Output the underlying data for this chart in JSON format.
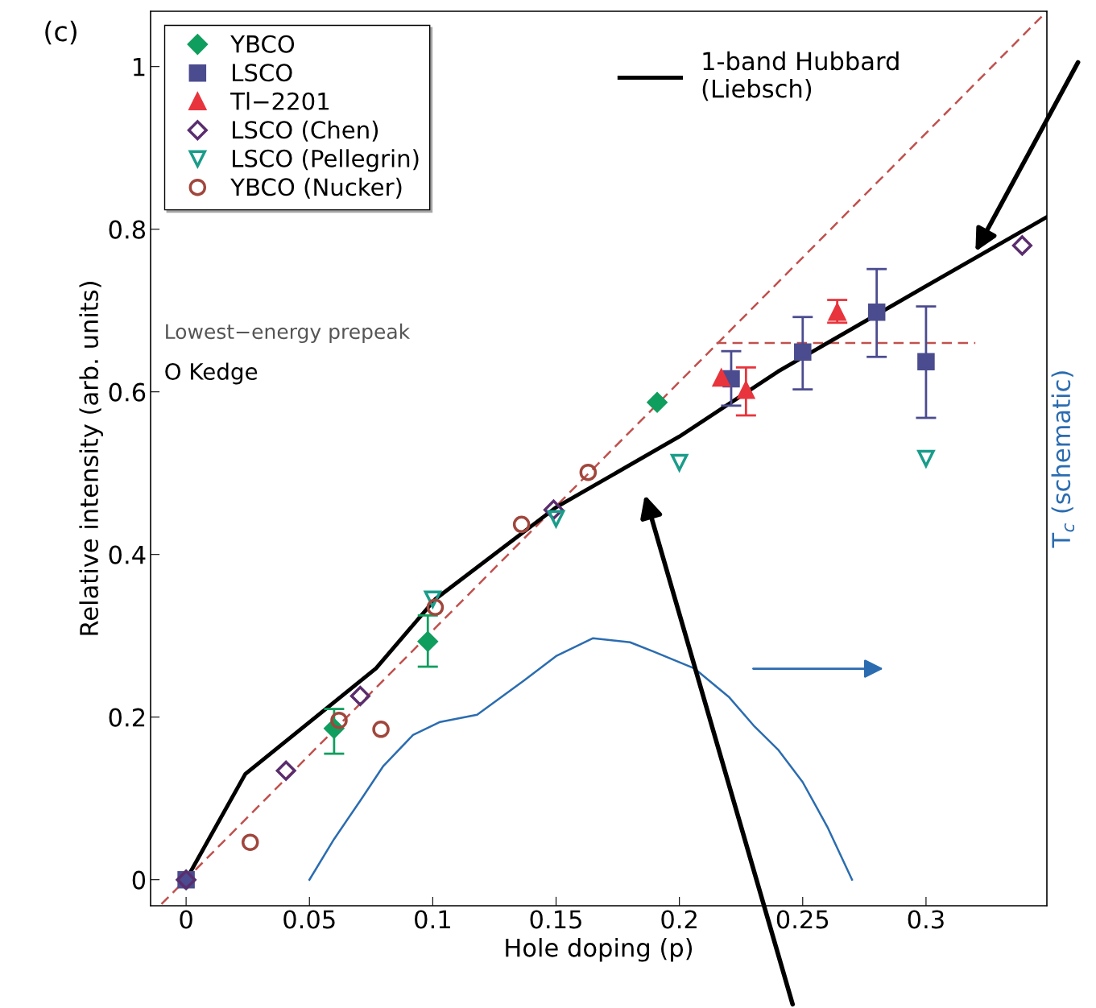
{
  "chart_data": {
    "type": "scatter",
    "xlabel": "Hole doping (p)",
    "ylabel": "Relative intensity (arb. units)",
    "y2label": "T$_{c}$ (schematic)",
    "xlim": [
      -0.0144,
      0.349
    ],
    "ylim": [
      -0.032,
      1.068
    ],
    "xticks": [
      0,
      0.05,
      0.1,
      0.15,
      0.2,
      0.25,
      0.3
    ],
    "yticks": [
      0,
      0.2,
      0.4,
      0.6,
      0.8,
      1
    ],
    "grid": false,
    "legend": "top left",
    "annotations": [
      "(c)",
      "Lowest−energy prepeak",
      "O Kedge"
    ],
    "series": [
      {
        "type": "line",
        "color": "#c0504d",
        "line_style": "dashed",
        "marker": "none",
        "x": [
          -0.01,
          0.349
        ],
        "values": [
          -0.03,
          1.068
        ]
      },
      {
        "type": "line",
        "color": "#c0504d",
        "line_style": "dashed",
        "marker": "none",
        "x": [
          0.215,
          0.32
        ],
        "values": [
          0.66,
          0.66
        ]
      },
      {
        "type": "line",
        "color": "#2b6cb0",
        "line_style": "solid",
        "marker": "none",
        "x": [
          0.05,
          0.06,
          0.071,
          0.08,
          0.092,
          0.103,
          0.118,
          0.137,
          0.15,
          0.165,
          0.18,
          0.19,
          0.206,
          0.22,
          0.23,
          0.24,
          0.25,
          0.26,
          0.27
        ],
        "values": [
          0,
          0.05,
          0.099,
          0.14,
          0.178,
          0.194,
          0.203,
          0.245,
          0.275,
          0.297,
          0.292,
          0.28,
          0.26,
          0.225,
          0.19,
          0.16,
          0.12,
          0.065,
          0
        ]
      },
      {
        "type": "line",
        "name": "1-band Hubbard\n(Liebsch)",
        "color": "#000000",
        "line_style": "solid",
        "marker": "none",
        "x": [
          0,
          0.024,
          0.077,
          0.101,
          0.15,
          0.2,
          0.24,
          0.3,
          0.349
        ],
        "values": [
          0,
          0.13,
          0.26,
          0.345,
          0.458,
          0.545,
          0.625,
          0.73,
          0.815
        ]
      },
      {
        "name": "YBCO",
        "color": "#109e5e",
        "marker": "diamond",
        "x": [
          0,
          0.06,
          0.098,
          0.191
        ],
        "values": [
          0,
          0.186,
          0.293,
          0.587
        ],
        "errors": [
          null,
          [
            0.155,
            0.21
          ],
          [
            0.262,
            0.325
          ],
          null
        ]
      },
      {
        "name": "LSCO",
        "color": "#4b4b8f",
        "marker": "square",
        "x": [
          0,
          0.221,
          0.25,
          0.28,
          0.3
        ],
        "values": [
          0,
          0.616,
          0.649,
          0.698,
          0.637
        ],
        "errors": [
          null,
          [
            0.583,
            0.65
          ],
          [
            0.603,
            0.692
          ],
          [
            0.643,
            0.751
          ],
          [
            0.568,
            0.705
          ]
        ]
      },
      {
        "name": "Tl−2201",
        "color": "#e8343c",
        "marker": "triangle",
        "x": [
          0.217,
          0.227,
          0.264
        ],
        "values": [
          0.617,
          0.602,
          0.698
        ],
        "errors": [
          null,
          [
            0.571,
            0.63
          ],
          [
            0.685,
            0.713
          ]
        ]
      },
      {
        "name": "LSCO (Chen)",
        "color": "#5a2d6e",
        "marker": "diamond",
        "x": [
          0,
          0.0405,
          0.0706,
          0.149,
          0.339
        ],
        "values": [
          0,
          0.134,
          0.226,
          0.455,
          0.78
        ]
      },
      {
        "name": "LSCO (Pellegrin)",
        "color": "#1a9c8a",
        "marker": "triangle_down",
        "x": [
          0.1,
          0.15,
          0.2,
          0.3
        ],
        "values": [
          0.345,
          0.444,
          0.513,
          0.518
        ]
      },
      {
        "name": "YBCO (Nucker)",
        "color": "#a0463c",
        "marker": "circle",
        "x": [
          0.026,
          0.062,
          0.079,
          0.101,
          0.136,
          0.163
        ],
        "values": [
          0.046,
          0.196,
          0.185,
          0.335,
          0.437,
          0.501
        ]
      }
    ]
  }
}
